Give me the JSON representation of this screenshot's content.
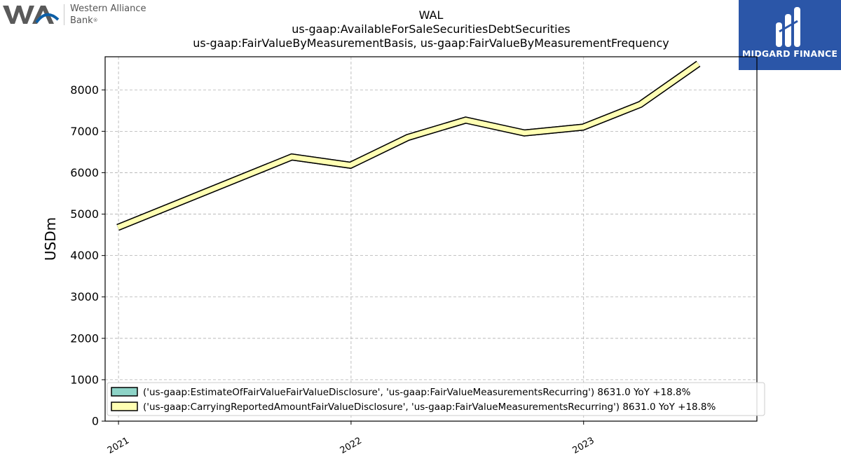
{
  "header": {
    "wal_logo_line1": "Western Alliance",
    "wal_logo_line2": "Bank",
    "wal_logo_mark": "WA",
    "midgard_logo_text": "MIDGARD FINANCE"
  },
  "chart_data": {
    "type": "line",
    "title": [
      "WAL",
      "us-gaap:AvailableForSaleSecuritiesDebtSecurities",
      "us-gaap:FairValueByMeasurementBasis, us-gaap:FairValueByMeasurementFrequency"
    ],
    "xlabel": "",
    "ylabel": "USDm",
    "ylim": [
      0,
      8800
    ],
    "yticks": [
      0,
      1000,
      2000,
      3000,
      4000,
      5000,
      6000,
      7000,
      8000
    ],
    "xlim": [
      "2020-12-11",
      "2023-09-30"
    ],
    "xticks": [
      "2021",
      "2022",
      "2023"
    ],
    "x": [
      "2020-12-31",
      "2021-09-30",
      "2021-12-31",
      "2022-03-31",
      "2022-06-30",
      "2022-09-30",
      "2022-12-31",
      "2023-03-31",
      "2023-06-30"
    ],
    "series": [
      {
        "name": "('us-gaap:EstimateOfFairValueFairValueDisclosure', 'us-gaap:FairValueMeasurementsRecurring') 8631.0 YoY +18.8%",
        "color": "#8dd3c7",
        "values": [
          4680,
          6380,
          6180,
          6850,
          7270,
          6960,
          7100,
          7650,
          8631
        ]
      },
      {
        "name": "('us-gaap:CarryingReportedAmountFairValueDisclosure', 'us-gaap:FairValueMeasurementsRecurring') 8631.0 YoY +18.8%",
        "color": "#ffffb3",
        "values": [
          4680,
          6380,
          6180,
          6850,
          7270,
          6960,
          7100,
          7650,
          8631
        ]
      }
    ],
    "grid": true,
    "legend_position": "bottom-left"
  }
}
